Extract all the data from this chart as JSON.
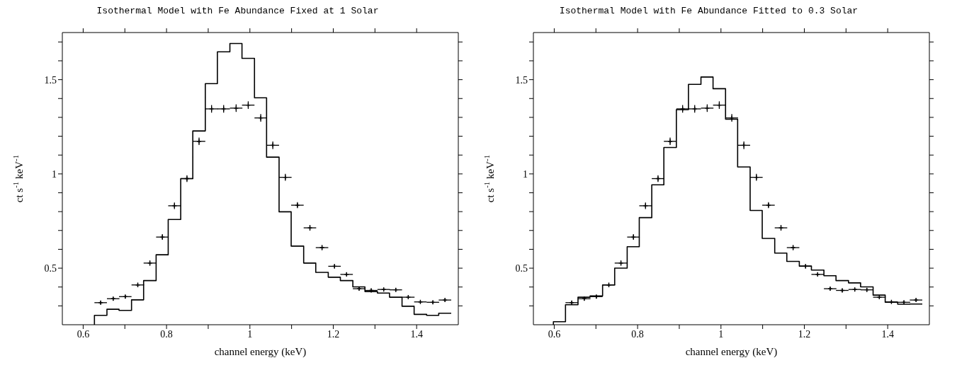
{
  "chart_data": [
    {
      "type": "histogram",
      "title": "Isothermal Model with Fe Abundance Fixed at 1 Solar",
      "xlabel": "channel energy (keV)",
      "ylabel": "ct s$^{-1}$ keV$^{-1}$",
      "xlim": [
        0.55,
        1.5
      ],
      "ylim": [
        0.2,
        1.75
      ],
      "xticks": [
        0.6,
        {
          "value": 0.7,
          "label": null
        },
        0.8,
        {
          "value": 0.9,
          "label": null
        },
        1,
        {
          "value": 1.1,
          "label": null
        },
        1.2,
        {
          "value": 1.3,
          "label": null
        },
        1.4
      ],
      "yticks": [
        {
          "value": 0.3,
          "label": null
        },
        {
          "value": 0.4,
          "label": null
        },
        0.5,
        {
          "value": 0.6,
          "label": null
        },
        {
          "value": 0.7,
          "label": null
        },
        {
          "value": 0.8,
          "label": null
        },
        {
          "value": 0.9,
          "label": null
        },
        1,
        {
          "value": 1.1,
          "label": null
        },
        {
          "value": 1.2,
          "label": null
        },
        {
          "value": 1.3,
          "label": null
        },
        {
          "value": 1.4,
          "label": null
        },
        1.5,
        {
          "value": 1.6,
          "label": null
        },
        {
          "value": 1.7,
          "label": null
        }
      ],
      "series": [
        {
          "color": "#000000",
          "bins": [
            0.627,
            0.657,
            0.686,
            0.716,
            0.745,
            0.775,
            0.804,
            0.834,
            0.863,
            0.893,
            0.922,
            0.952,
            0.981,
            1.011,
            1.04,
            1.07,
            1.099,
            1.129,
            1.158,
            1.188,
            1.217,
            1.247,
            1.276,
            1.306,
            1.335,
            1.365,
            1.394,
            1.424,
            1.453,
            1.483
          ],
          "values": [
            0.25,
            0.282,
            0.276,
            0.332,
            0.434,
            0.571,
            0.758,
            0.975,
            1.228,
            1.479,
            1.648,
            1.692,
            1.613,
            1.404,
            1.089,
            0.799,
            0.617,
            0.527,
            0.478,
            0.452,
            0.434,
            0.401,
            0.376,
            0.368,
            0.346,
            0.298,
            0.255,
            0.25,
            0.261
          ]
        },
        {
          "type": "scatter",
          "color": "#000000",
          "marker": "cross",
          "x": [
            0.642,
            0.672,
            0.701,
            0.731,
            0.76,
            0.79,
            0.819,
            0.849,
            0.878,
            0.908,
            0.937,
            0.967,
            0.996,
            1.026,
            1.055,
            1.085,
            1.114,
            1.144,
            1.173,
            1.203,
            1.232,
            1.262,
            1.291,
            1.321,
            1.35,
            1.38,
            1.409,
            1.439,
            1.468
          ],
          "values": [
            0.317,
            0.338,
            0.349,
            0.411,
            0.527,
            0.665,
            0.831,
            0.975,
            1.173,
            1.345,
            1.345,
            1.349,
            1.365,
            1.297,
            1.152,
            0.982,
            0.834,
            0.714,
            0.609,
            0.51,
            0.467,
            0.391,
            0.382,
            0.387,
            0.385,
            0.346,
            0.321,
            0.319,
            0.331
          ],
          "errors": [
            0.01,
            0.01,
            0.01,
            0.012,
            0.014,
            0.015,
            0.017,
            0.018,
            0.02,
            0.02,
            0.02,
            0.02,
            0.02,
            0.02,
            0.02,
            0.018,
            0.016,
            0.015,
            0.014,
            0.012,
            0.011,
            0.01,
            0.01,
            0.01,
            0.01,
            0.01,
            0.009,
            0.009,
            0.009
          ],
          "xerrors": [
            0.015,
            0.015,
            0.015,
            0.015,
            0.015,
            0.015,
            0.015,
            0.015,
            0.015,
            0.015,
            0.015,
            0.015,
            0.015,
            0.015,
            0.015,
            0.015,
            0.015,
            0.015,
            0.015,
            0.015,
            0.015,
            0.015,
            0.015,
            0.015,
            0.015,
            0.015,
            0.015,
            0.015,
            0.015
          ]
        }
      ]
    },
    {
      "type": "histogram",
      "title": "Isothermal Model with Fe Abundance Fitted to 0.3 Solar",
      "xlabel": "channel energy (keV)",
      "ylabel": "ct s$^{-1}$ keV$^{-1}$",
      "xlim": [
        0.55,
        1.5
      ],
      "ylim": [
        0.2,
        1.75
      ],
      "xticks": [
        0.6,
        {
          "value": 0.7,
          "label": null
        },
        0.8,
        {
          "value": 0.9,
          "label": null
        },
        1,
        {
          "value": 1.1,
          "label": null
        },
        1.2,
        {
          "value": 1.3,
          "label": null
        },
        1.4
      ],
      "yticks": [
        {
          "value": 0.3,
          "label": null
        },
        {
          "value": 0.4,
          "label": null
        },
        0.5,
        {
          "value": 0.6,
          "label": null
        },
        {
          "value": 0.7,
          "label": null
        },
        {
          "value": 0.8,
          "label": null
        },
        {
          "value": 0.9,
          "label": null
        },
        1,
        {
          "value": 1.1,
          "label": null
        },
        {
          "value": 1.2,
          "label": null
        },
        {
          "value": 1.3,
          "label": null
        },
        {
          "value": 1.4,
          "label": null
        },
        1.5,
        {
          "value": 1.6,
          "label": null
        },
        {
          "value": 1.7,
          "label": null
        }
      ],
      "series": [
        {
          "color": "#000000",
          "bins": [
            0.598,
            0.627,
            0.657,
            0.686,
            0.716,
            0.745,
            0.775,
            0.804,
            0.834,
            0.863,
            0.893,
            0.922,
            0.952,
            0.981,
            1.011,
            1.04,
            1.07,
            1.099,
            1.129,
            1.158,
            1.188,
            1.217,
            1.247,
            1.276,
            1.306,
            1.335,
            1.365,
            1.394,
            1.424,
            1.453,
            1.483
          ],
          "values": [
            0.216,
            0.306,
            0.346,
            0.353,
            0.411,
            0.5,
            0.614,
            0.768,
            0.942,
            1.14,
            1.341,
            1.475,
            1.514,
            1.452,
            1.29,
            1.037,
            0.806,
            0.658,
            0.58,
            0.536,
            0.511,
            0.49,
            0.46,
            0.434,
            0.422,
            0.401,
            0.357,
            0.319,
            0.309,
            0.31
          ]
        },
        {
          "type": "scatter",
          "color": "#000000",
          "marker": "cross",
          "x": [
            0.642,
            0.672,
            0.701,
            0.731,
            0.76,
            0.79,
            0.819,
            0.849,
            0.878,
            0.908,
            0.937,
            0.967,
            0.996,
            1.026,
            1.055,
            1.085,
            1.114,
            1.144,
            1.173,
            1.203,
            1.232,
            1.262,
            1.291,
            1.321,
            1.35,
            1.38,
            1.409,
            1.439,
            1.468
          ],
          "values": [
            0.317,
            0.338,
            0.349,
            0.411,
            0.527,
            0.665,
            0.831,
            0.975,
            1.173,
            1.345,
            1.345,
            1.349,
            1.365,
            1.297,
            1.152,
            0.982,
            0.834,
            0.714,
            0.609,
            0.51,
            0.467,
            0.391,
            0.382,
            0.387,
            0.385,
            0.346,
            0.321,
            0.319,
            0.331
          ],
          "errors": [
            0.01,
            0.01,
            0.01,
            0.012,
            0.014,
            0.015,
            0.017,
            0.018,
            0.02,
            0.02,
            0.02,
            0.02,
            0.02,
            0.02,
            0.02,
            0.018,
            0.016,
            0.015,
            0.014,
            0.012,
            0.011,
            0.01,
            0.01,
            0.01,
            0.01,
            0.01,
            0.009,
            0.009,
            0.009
          ],
          "xerrors": [
            0.015,
            0.015,
            0.015,
            0.015,
            0.015,
            0.015,
            0.015,
            0.015,
            0.015,
            0.015,
            0.015,
            0.015,
            0.015,
            0.015,
            0.015,
            0.015,
            0.015,
            0.015,
            0.015,
            0.015,
            0.015,
            0.015,
            0.015,
            0.015,
            0.015,
            0.015,
            0.015,
            0.015,
            0.015
          ]
        }
      ]
    }
  ]
}
